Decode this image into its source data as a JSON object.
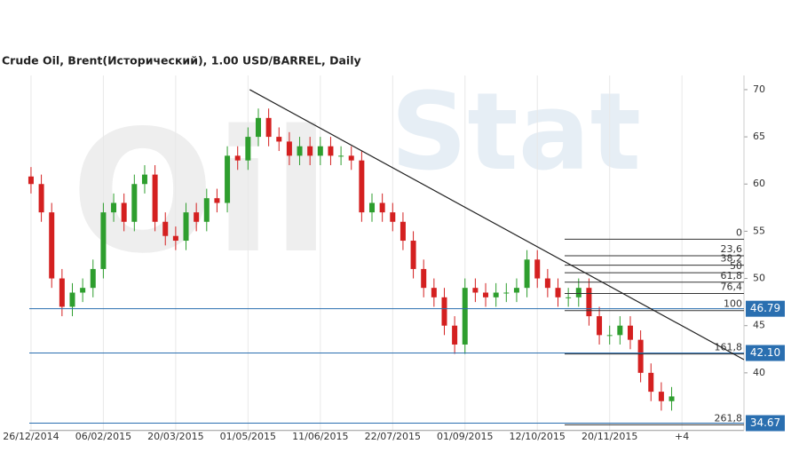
{
  "chart_data": {
    "type": "candlestick",
    "title": "Crude Oil, Brent(Исторический), 1.00 USD/BARREL, Daily",
    "watermark": [
      "Oil",
      "Stat"
    ],
    "x": [
      0,
      6,
      12,
      18,
      24,
      30,
      36,
      42,
      48,
      54,
      60,
      66,
      72,
      78,
      84,
      90,
      96,
      102,
      108,
      114,
      120,
      126,
      132,
      138,
      144,
      150,
      156,
      162,
      168,
      174,
      180,
      186,
      192,
      198,
      204,
      210,
      216,
      222,
      228,
      234,
      240,
      246,
      252,
      258,
      264,
      270,
      276,
      282,
      288,
      294,
      300,
      306,
      312,
      318,
      324,
      330,
      336,
      342,
      348,
      354,
      360,
      366,
      372
    ],
    "open": [
      60.8,
      60,
      57,
      50,
      47,
      48.5,
      49,
      51,
      57,
      58,
      56,
      60,
      61,
      56,
      54.5,
      54,
      57,
      56,
      58.5,
      58,
      63,
      62.5,
      65,
      67,
      65,
      64.5,
      63,
      64,
      63,
      64,
      63,
      63,
      62.5,
      57,
      58,
      57,
      56,
      54,
      51,
      49,
      48,
      45,
      43,
      49,
      48.5,
      48,
      48.5,
      48.5,
      49,
      52,
      50,
      49,
      48,
      48,
      49,
      46,
      44,
      44,
      45,
      43.5,
      40,
      38,
      37
    ],
    "high": [
      61.8,
      61,
      58,
      51,
      49.5,
      50,
      52,
      58,
      59,
      59,
      61,
      62,
      62,
      57,
      55.5,
      58,
      58,
      59.5,
      59.5,
      64,
      64,
      66,
      68,
      68,
      66,
      65.5,
      65,
      65,
      65,
      65,
      64,
      64,
      63.5,
      59,
      59,
      58,
      57,
      55,
      52,
      50,
      49,
      46,
      50,
      50,
      49.5,
      49.5,
      49.5,
      50,
      53,
      53,
      51,
      50,
      49,
      50,
      50,
      47,
      45,
      46,
      46,
      44.5,
      41,
      39,
      38.5
    ],
    "low": [
      59,
      56,
      49,
      46,
      46,
      47.5,
      48,
      50,
      56,
      55,
      55,
      59,
      55,
      53.5,
      53,
      53,
      55,
      55,
      57,
      57,
      61.5,
      61.5,
      64,
      64,
      63.5,
      62,
      62,
      62,
      62,
      62,
      62,
      61.5,
      56,
      56,
      56,
      55,
      53,
      50,
      48,
      47,
      44,
      42,
      42,
      47.5,
      47,
      47,
      47.5,
      47.5,
      48,
      49,
      48,
      47,
      47,
      47,
      45,
      43,
      43,
      43,
      42.5,
      39,
      37,
      36,
      36
    ],
    "close": [
      60,
      57,
      50,
      47,
      48.5,
      49,
      51,
      57,
      58,
      56,
      60,
      61,
      56,
      54.5,
      54,
      57,
      56,
      58.5,
      58,
      63,
      62.5,
      65,
      67,
      65,
      64.5,
      63,
      64,
      63,
      64,
      63,
      63,
      62.5,
      57,
      58,
      57,
      56,
      54,
      51,
      49,
      48,
      45,
      43,
      49,
      48.5,
      48,
      48.5,
      48.5,
      49,
      52,
      50,
      49,
      48,
      48,
      49,
      46,
      44,
      44,
      45,
      43.5,
      40,
      38,
      37,
      37.5
    ],
    "up_color": "#2e9e2e",
    "down_color": "#d42020",
    "xlim": [
      -1,
      414
    ],
    "xticks": [
      {
        "value": 0,
        "label": "26/12/2014"
      },
      {
        "value": 42,
        "label": "06/02/2015"
      },
      {
        "value": 84,
        "label": "20/03/2015"
      },
      {
        "value": 126,
        "label": "01/05/2015"
      },
      {
        "value": 168,
        "label": "11/06/2015"
      },
      {
        "value": 210,
        "label": "22/07/2015"
      },
      {
        "value": 252,
        "label": "01/09/2015"
      },
      {
        "value": 294,
        "label": "12/10/2015"
      },
      {
        "value": 336,
        "label": "20/11/2015"
      },
      {
        "value": 378,
        "label": "+4"
      }
    ],
    "ylim": [
      33.9,
      71.5
    ],
    "yticks": [
      40,
      45,
      50,
      55,
      60,
      65,
      70
    ],
    "grid": true,
    "trendline": {
      "x": [
        127,
        414
      ],
      "y": [
        70,
        41.4
      ],
      "color": "#222"
    },
    "fib_levels": [
      {
        "label": "0",
        "price": 54.15
      },
      {
        "label": "23,6",
        "price": 52.4
      },
      {
        "label": "38,2",
        "price": 51.4
      },
      {
        "label": "50",
        "price": 50.6
      },
      {
        "label": "61,8",
        "price": 49.6
      },
      {
        "label": "76,4",
        "price": 48.4
      },
      {
        "label": "100",
        "price": 46.6
      },
      {
        "label": "161,8",
        "price": 42.0
      },
      {
        "label": "261,8",
        "price": 34.5
      }
    ],
    "price_lines": {
      "values": [
        46.79,
        42.1,
        34.67
      ],
      "value_labels": [
        "46.79",
        "42.10",
        "34.67"
      ],
      "color": "#2a6fb0"
    }
  }
}
